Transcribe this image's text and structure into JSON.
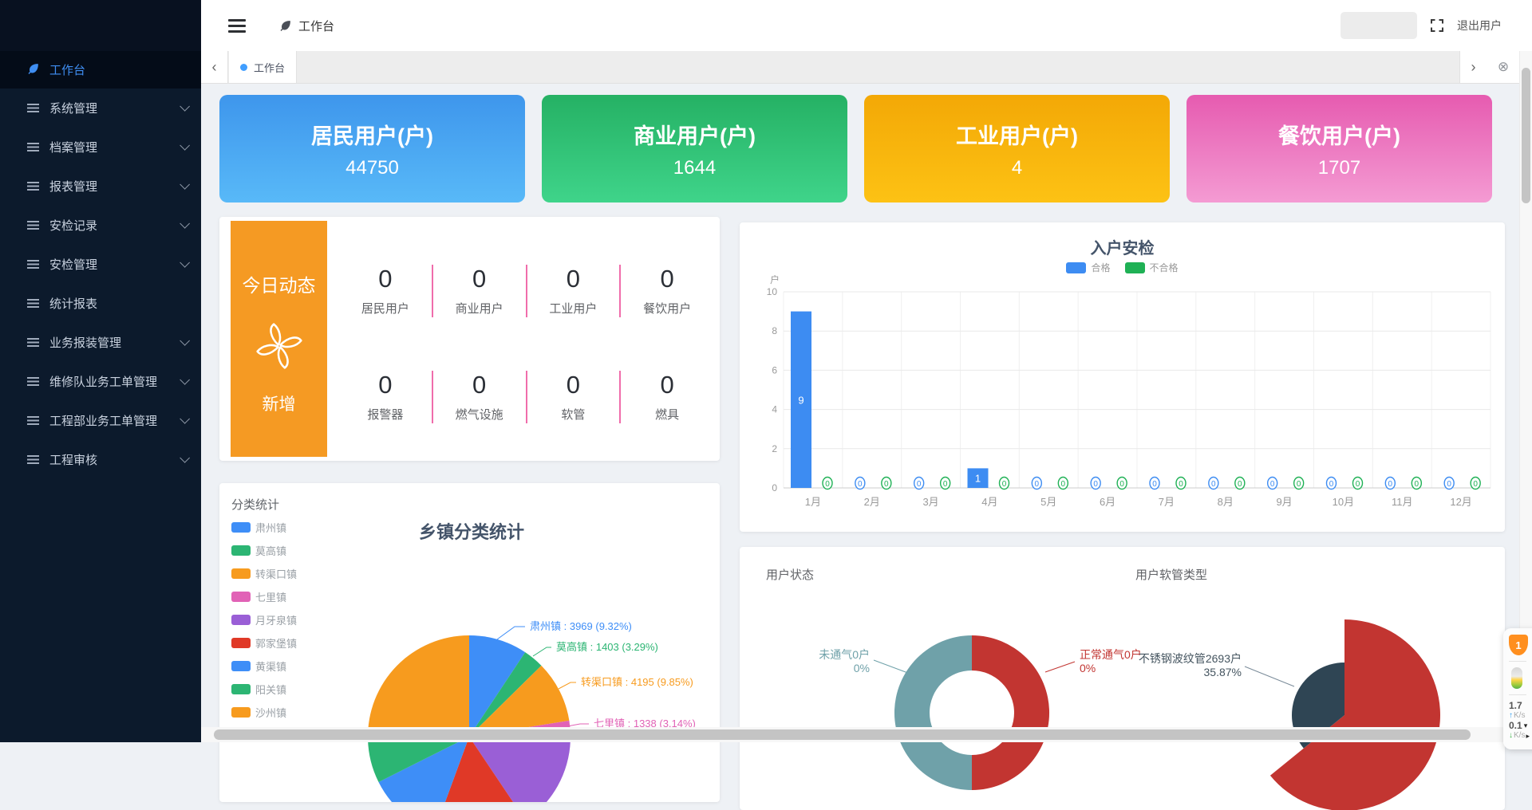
{
  "header": {
    "title": "工作台",
    "logout_label": "退出用户"
  },
  "sidebar": {
    "items": [
      {
        "label": "工作台",
        "slug": "workbench",
        "active": true,
        "has_arrow": false,
        "icon": "leaf-icon"
      },
      {
        "label": "系统管理",
        "slug": "system-mgmt",
        "active": false,
        "has_arrow": true,
        "icon": "menu-lines-icon"
      },
      {
        "label": "档案管理",
        "slug": "archive-mgmt",
        "active": false,
        "has_arrow": true,
        "icon": "menu-lines-icon"
      },
      {
        "label": "报表管理",
        "slug": "report-mgmt",
        "active": false,
        "has_arrow": true,
        "icon": "menu-lines-icon"
      },
      {
        "label": "安检记录",
        "slug": "inspection-records",
        "active": false,
        "has_arrow": true,
        "icon": "menu-lines-icon"
      },
      {
        "label": "安检管理",
        "slug": "inspection-mgmt",
        "active": false,
        "has_arrow": true,
        "icon": "menu-lines-icon"
      },
      {
        "label": "统计报表",
        "slug": "statistics-report",
        "active": false,
        "has_arrow": false,
        "icon": "menu-lines-icon"
      },
      {
        "label": "业务报装管理",
        "slug": "installation-mgmt",
        "active": false,
        "has_arrow": true,
        "icon": "menu-lines-icon"
      },
      {
        "label": "维修队业务工单管理",
        "slug": "repair-team-orders",
        "active": false,
        "has_arrow": true,
        "icon": "menu-lines-icon"
      },
      {
        "label": "工程部业务工单管理",
        "slug": "engineering-orders",
        "active": false,
        "has_arrow": true,
        "icon": "menu-lines-icon"
      },
      {
        "label": "工程审核",
        "slug": "engineering-review",
        "active": false,
        "has_arrow": true,
        "icon": "menu-lines-icon"
      }
    ]
  },
  "tabs": {
    "active": "工作台",
    "prev_icon": "‹",
    "next_icon": "›",
    "close_icon": "⊗"
  },
  "stat_cards": [
    {
      "slug": "resident",
      "title": "居民用户(户)",
      "value": "44750",
      "color_top": "#3e96ec",
      "color_bottom": "#58b9f8"
    },
    {
      "slug": "commercial",
      "title": "商业用户(户)",
      "value": "1644",
      "color_top": "#25b164",
      "color_bottom": "#3fd48a"
    },
    {
      "slug": "industrial",
      "title": "工业用户(户)",
      "value": "4",
      "color_top": "#f3a806",
      "color_bottom": "#fdc214"
    },
    {
      "slug": "catering",
      "title": "餐饮用户(户)",
      "value": "1707",
      "color_top": "#e65bb0",
      "color_bottom": "#f49bd3"
    }
  ],
  "today": {
    "title": "今日动态",
    "subtitle": "新增",
    "accent": "#f59a23",
    "divider_color": "#f06dab",
    "rows": [
      [
        {
          "value": "0",
          "label": "居民用户"
        },
        {
          "value": "0",
          "label": "商业用户"
        },
        {
          "value": "0",
          "label": "工业用户"
        },
        {
          "value": "0",
          "label": "餐饮用户"
        }
      ],
      [
        {
          "value": "0",
          "label": "报警器"
        },
        {
          "value": "0",
          "label": "燃气设施"
        },
        {
          "value": "0",
          "label": "软管"
        },
        {
          "value": "0",
          "label": "燃具"
        }
      ]
    ]
  },
  "chart_data": [
    {
      "id": "safety-check",
      "type": "bar",
      "title": "入户安检",
      "ylabel": "户",
      "ylim": [
        0,
        10
      ],
      "ytick_step": 2,
      "grid": true,
      "legend_position": "top",
      "categories": [
        "1月",
        "2月",
        "3月",
        "4月",
        "5月",
        "6月",
        "7月",
        "8月",
        "9月",
        "10月",
        "11月",
        "12月"
      ],
      "series": [
        {
          "name": "合格",
          "color": "#3d8cf2",
          "values": [
            9,
            0,
            0,
            1,
            0,
            0,
            0,
            0,
            0,
            0,
            0,
            0
          ]
        },
        {
          "name": "不合格",
          "color": "#1fb155",
          "values": [
            0,
            0,
            0,
            0,
            0,
            0,
            0,
            0,
            0,
            0,
            0,
            0
          ]
        }
      ]
    },
    {
      "id": "town-classification",
      "type": "pie",
      "card_label": "分类统计",
      "title": "乡镇分类统计",
      "legend_position": "left",
      "legend": [
        {
          "name": "肃州镇",
          "color": "#3e8ef7"
        },
        {
          "name": "莫高镇",
          "color": "#2cb573"
        },
        {
          "name": "转渠口镇",
          "color": "#f79b1e"
        },
        {
          "name": "七里镇",
          "color": "#e162b6"
        },
        {
          "name": "月牙泉镇",
          "color": "#9a5fd6"
        },
        {
          "name": "郭家堡镇",
          "color": "#e03927"
        },
        {
          "name": "黄渠镇",
          "color": "#3e8ef7"
        },
        {
          "name": "阳关镇",
          "color": "#2cb573"
        },
        {
          "name": "沙州镇",
          "color": "#f79b1e"
        }
      ],
      "labeled_slices": [
        {
          "name": "肃州镇",
          "value": 3969,
          "pct": "9.32%",
          "color": "#3e8ef7"
        },
        {
          "name": "莫高镇",
          "value": 1403,
          "pct": "3.29%",
          "color": "#2cb573"
        },
        {
          "name": "转渠口镇",
          "value": 4195,
          "pct": "9.85%",
          "color": "#f79b1e"
        },
        {
          "name": "七里镇",
          "value": 1338,
          "pct": "3.14%",
          "color": "#e162b6"
        }
      ]
    },
    {
      "id": "user-status",
      "type": "pie",
      "variant": "donut",
      "label": "用户状态",
      "slices": [
        {
          "name": "未通气0户",
          "pct": "0%",
          "color": "#6fa1a9",
          "side": "left"
        },
        {
          "name": "正常通气0户",
          "pct": "0%",
          "color": "#c23531",
          "side": "right"
        }
      ]
    },
    {
      "id": "hose-type",
      "type": "pie",
      "variant": "rose",
      "label": "用户软管类型",
      "slices": [
        {
          "name": "不锈钢波纹管2693户",
          "pct": "35.87%",
          "color": "#2f4554",
          "radius": "small"
        },
        {
          "name": "",
          "pct": "64.13%",
          "color": "#c23531",
          "radius": "large"
        }
      ]
    }
  ],
  "widget": {
    "shield_badge": "1",
    "up_value": "1.7",
    "up_unit": "K/s",
    "down_value": "0.1",
    "down_unit": "K/s"
  }
}
